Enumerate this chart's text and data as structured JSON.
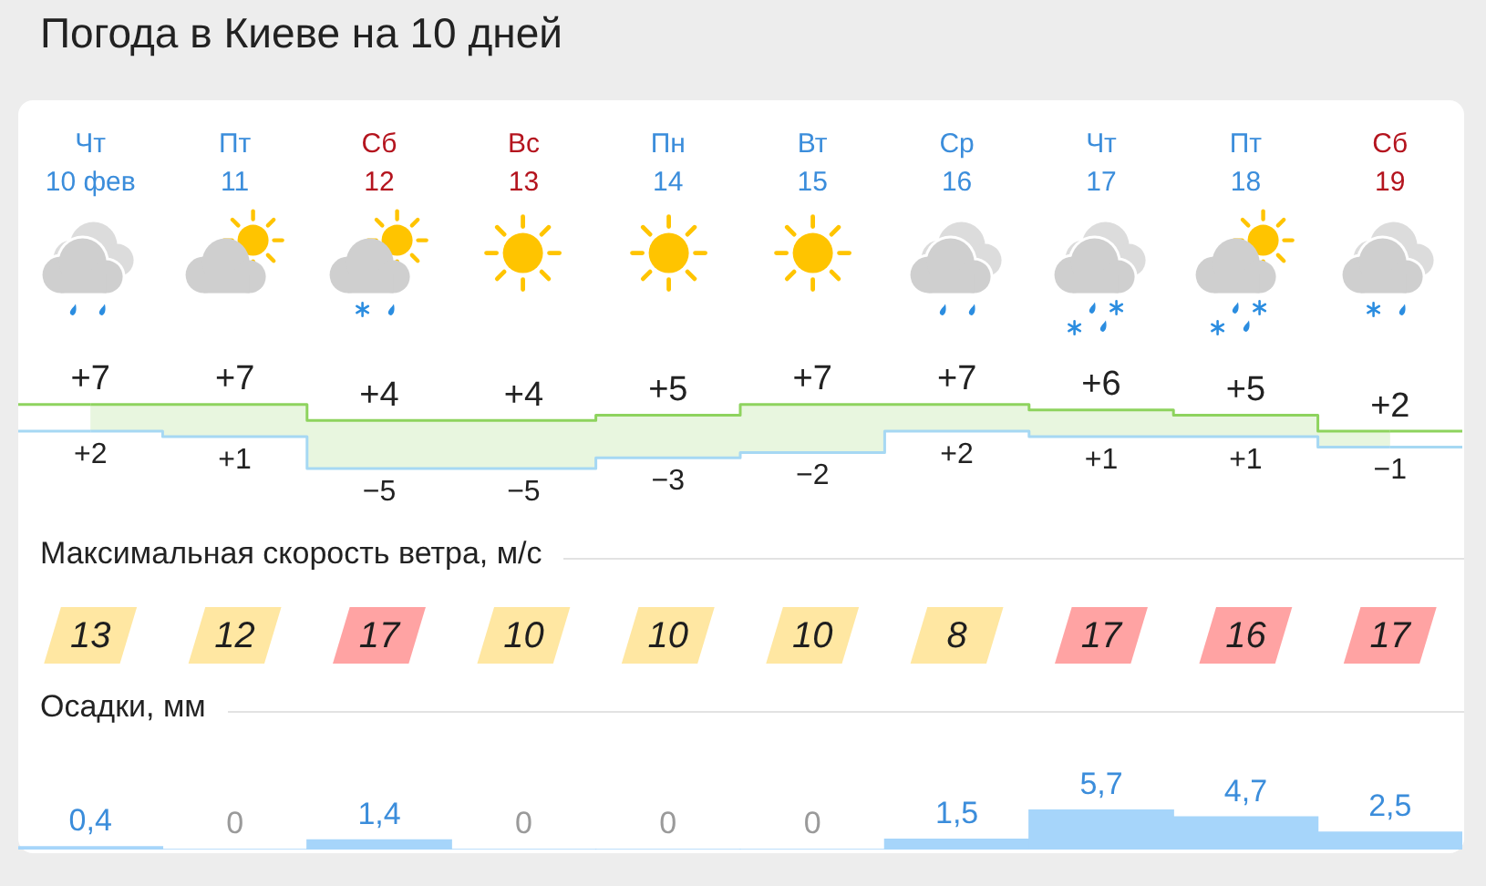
{
  "chart_data": [
    {
      "type": "step",
      "title": "Погода в Киеве на 10 дней",
      "categories": [
        "Чт\n10 фев",
        "Пт\n11",
        "Сб\n12",
        "Вс\n13",
        "Пн\n14",
        "Вт\n15",
        "Ср\n16",
        "Чт\n17",
        "Пт\n18",
        "Сб\n19"
      ],
      "series": [
        {
          "color": "#8ed35e",
          "values": [
            7,
            7,
            4,
            4,
            5,
            7,
            7,
            6,
            5,
            2
          ],
          "value_labels": [
            "+7",
            "+7",
            "+4",
            "+4",
            "+5",
            "+7",
            "+7",
            "+6",
            "+5",
            "+2"
          ],
          "lower": [
            2,
            1,
            -5,
            -5,
            -3,
            -2,
            2,
            1,
            1,
            -1
          ],
          "upper": [
            7,
            7,
            4,
            4,
            5,
            7,
            7,
            6,
            5,
            2
          ]
        },
        {
          "color": "#a6d8f3",
          "values": [
            2,
            1,
            -5,
            -5,
            -3,
            -2,
            2,
            1,
            1,
            -1
          ],
          "value_labels": [
            "+2",
            "+1",
            "−5",
            "−5",
            "−3",
            "−2",
            "+2",
            "+1",
            "+1",
            "−1"
          ]
        }
      ],
      "tick_labels": "x"
    },
    {
      "type": "other",
      "title": "Максимальная скорость ветра, м/с",
      "categories": [
        null,
        null,
        null,
        null,
        null,
        null,
        null,
        null,
        null,
        null
      ],
      "values": [
        13,
        12,
        17,
        10,
        10,
        10,
        8,
        17,
        16,
        17
      ],
      "colors": [
        "#ffe7a2",
        "#ffe7a2",
        "#ffa3a3",
        "#ffe7a2",
        "#ffe7a2",
        "#ffe7a2",
        "#ffe7a2",
        "#ffa3a3",
        "#ffa3a3",
        "#ffa3a3"
      ],
      "data_labels": true
    },
    {
      "type": "bar",
      "title": "Осадки, мм",
      "categories": [
        null,
        null,
        null,
        null,
        null,
        null,
        null,
        null,
        null,
        null
      ],
      "values": [
        0.4,
        0,
        1.4,
        0,
        0,
        0,
        1.5,
        5.7,
        4.7,
        2.5
      ],
      "value_labels": [
        "0,4",
        "0",
        "1,4",
        "0",
        "0",
        "0",
        "1,5",
        "5,7",
        "4,7",
        "2,5"
      ],
      "color": "#a6d5fa",
      "tick_labels": false
    }
  ]
}
